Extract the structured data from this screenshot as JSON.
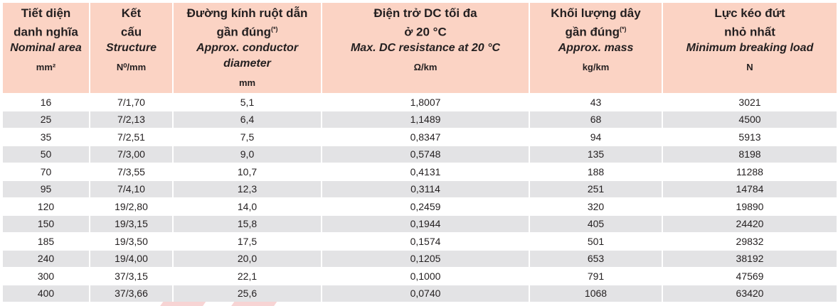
{
  "columns": [
    {
      "title1": "Tiết diện",
      "title2": "danh nghĩa",
      "sup": "",
      "en": "Nominal area",
      "unit": "mm²"
    },
    {
      "title1": "Kết",
      "title2": "cấu",
      "sup": "",
      "en": "Structure",
      "unit": "N⁰/mm"
    },
    {
      "title1": "Đường kính ruột dẫn",
      "title2": "gần đúng",
      "sup": "(*)",
      "en": "Approx. conductor diameter",
      "unit": "mm"
    },
    {
      "title1": "Điện trở DC tối đa",
      "title2": "ở 20 °C",
      "sup": "",
      "en": "Max. DC resistance at 20 °C",
      "unit": "Ω/km"
    },
    {
      "title1": "Khối lượng dây",
      "title2": "gần đúng",
      "sup": "(*)",
      "en": "Approx. mass",
      "unit": "kg/km"
    },
    {
      "title1": "Lực kéo đứt",
      "title2": "nhỏ nhất",
      "sup": "",
      "en": "Minimum breaking load",
      "unit": "N"
    }
  ],
  "rows": [
    [
      "16",
      "7/1,70",
      "5,1",
      "1,8007",
      "43",
      "3021"
    ],
    [
      "25",
      "7/2,13",
      "6,4",
      "1,1489",
      "68",
      "4500"
    ],
    [
      "35",
      "7/2,51",
      "7,5",
      "0,8347",
      "94",
      "5913"
    ],
    [
      "50",
      "7/3,00",
      "9,0",
      "0,5748",
      "135",
      "8198"
    ],
    [
      "70",
      "7/3,55",
      "10,7",
      "0,4131",
      "188",
      "11288"
    ],
    [
      "95",
      "7/4,10",
      "12,3",
      "0,3114",
      "251",
      "14784"
    ],
    [
      "120",
      "19/2,80",
      "14,0",
      "0,2459",
      "320",
      "19890"
    ],
    [
      "150",
      "19/3,15",
      "15,8",
      "0,1944",
      "405",
      "24420"
    ],
    [
      "185",
      "19/3,50",
      "17,5",
      "0,1574",
      "501",
      "29832"
    ],
    [
      "240",
      "19/4,00",
      "20,0",
      "0,1205",
      "653",
      "38192"
    ],
    [
      "300",
      "37/3,15",
      "22,1",
      "0,1000",
      "791",
      "47569"
    ],
    [
      "400",
      "37/3,66",
      "25,6",
      "0,0740",
      "1068",
      "63420"
    ]
  ]
}
